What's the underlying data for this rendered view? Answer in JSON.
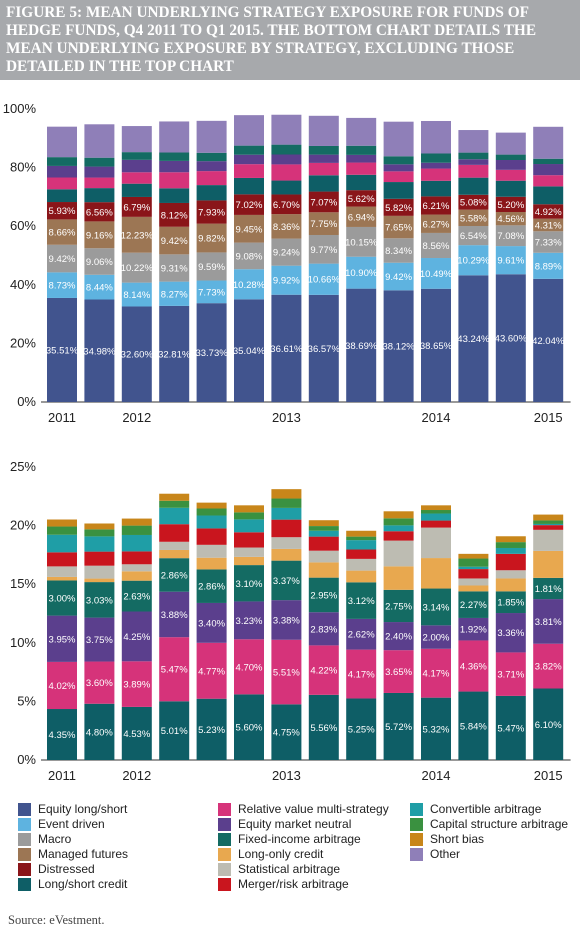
{
  "title": "FIGURE 5: MEAN UNDERLYING STRATEGY EXPOSURE FOR FUNDS OF HEDGE FUNDS, Q4 2011 TO Q1 2015. THE BOTTOM CHART DETAILS THE MEAN UNDERLYING EXPOSURE BY STRATEGY, EXCLUDING THOSE DETAILED IN THE TOP CHART",
  "source": "Source: eVestment.",
  "colors": {
    "Equity long/short": "#41548e",
    "Event driven": "#5eb3e0",
    "Macro": "#9b9b9b",
    "Managed futures": "#9c7654",
    "Distressed": "#8a1519",
    "Long/short credit": "#0e5e66",
    "Relative value multi-strategy": "#d6337a",
    "Equity market neutral": "#5b3f8d",
    "Fixed-income arbitrage": "#146b63",
    "Long-only credit": "#e8a84f",
    "Statistical arbitrage": "#bdbcb2",
    "Merger/risk arbitrage": "#c9151e",
    "Convertible arbitrage": "#1f9ea6",
    "Capital structure arbitrage": "#3a9140",
    "Short bias": "#c8861a",
    "Other": "#8f7fb8"
  },
  "legend": [
    "Equity long/short",
    "Event driven",
    "Macro",
    "Managed futures",
    "Distressed",
    "Long/short credit",
    "Relative value multi-strategy",
    "Equity market neutral",
    "Fixed-income arbitrage",
    "Long-only credit",
    "Statistical arbitrage",
    "Merger/risk arbitrage",
    "Convertible arbitrage",
    "Capital structure arbitrage",
    "Short bias",
    "Other"
  ],
  "chart_data": [
    {
      "type": "bar",
      "stacked": true,
      "categories": [
        "Q4 2011",
        "Q1 2012",
        "Q2 2012",
        "Q3 2012",
        "Q4 2012",
        "Q1 2013",
        "Q2 2013",
        "Q3 2013",
        "Q4 2013",
        "Q1 2014",
        "Q2 2014",
        "Q3 2014",
        "Q4 2014",
        "Q1 2015"
      ],
      "x_tick_labels": [
        "2011",
        "",
        "2012",
        "",
        "",
        "",
        "2013",
        "",
        "",
        "",
        "2014",
        "",
        "",
        "2015"
      ],
      "ylim": [
        0,
        100
      ],
      "y_ticks": [
        "0%",
        "20%",
        "40%",
        "60%",
        "80%",
        "100%"
      ],
      "grid": false,
      "series": [
        {
          "name": "Equity long/short",
          "values": [
            35.51,
            34.98,
            32.6,
            32.81,
            33.73,
            35.04,
            36.61,
            36.57,
            38.69,
            38.12,
            38.65,
            43.24,
            43.6,
            42.04
          ],
          "labels": [
            "35.51%",
            "34.98%",
            "32.60%",
            "32.81%",
            "33.73%",
            "35.04%",
            "36.61%",
            "36.57%",
            "38.69%",
            "38.12%",
            "38.65%",
            "43.24%",
            "43.60%",
            "42.04%"
          ]
        },
        {
          "name": "Event driven",
          "values": [
            8.73,
            8.44,
            8.14,
            8.27,
            7.73,
            10.28,
            9.92,
            10.66,
            10.9,
            9.42,
            10.49,
            10.29,
            9.61,
            8.89
          ],
          "labels": [
            "8.73%",
            "8.44%",
            "8.14%",
            "8.27%",
            "7.73%",
            "10.28%",
            "9.92%",
            "10.66%",
            "10.90%",
            "9.42%",
            "10.49%",
            "10.29%",
            "9.61%",
            "8.89%"
          ]
        },
        {
          "name": "Macro",
          "values": [
            9.42,
            9.06,
            10.22,
            9.31,
            9.59,
            9.08,
            9.24,
            9.77,
            10.15,
            8.34,
            8.56,
            6.54,
            7.08,
            7.33
          ],
          "labels": [
            "9.42%",
            "9.06%",
            "10.22%",
            "9.31%",
            "9.59%",
            "9.08%",
            "9.24%",
            "9.77%",
            "10.15%",
            "8.34%",
            "8.56%",
            "6.54%",
            "7.08%",
            "7.33%"
          ]
        },
        {
          "name": "Managed futures",
          "values": [
            8.66,
            9.16,
            12.23,
            9.42,
            9.82,
            9.45,
            8.36,
            7.75,
            6.94,
            7.65,
            6.27,
            5.58,
            4.56,
            4.31
          ],
          "labels": [
            "8.66%",
            "9.16%",
            "12.23%",
            "9.42%",
            "9.82%",
            "9.45%",
            "8.36%",
            "7.75%",
            "6.94%",
            "7.65%",
            "6.27%",
            "5.58%",
            "4.56%",
            "4.31%"
          ]
        },
        {
          "name": "Distressed",
          "values": [
            5.93,
            6.56,
            6.79,
            8.12,
            7.93,
            7.02,
            6.7,
            7.07,
            5.62,
            5.82,
            6.21,
            5.08,
            5.2,
            4.92
          ],
          "labels": [
            "5.93%",
            "6.56%",
            "6.79%",
            "8.12%",
            "7.93%",
            "7.02%",
            "6.70%",
            "7.07%",
            "5.62%",
            "5.82%",
            "6.21%",
            "5.08%",
            "5.20%",
            "4.92%"
          ]
        },
        {
          "name": "Long/short credit",
          "values": [
            4.35,
            4.8,
            4.53,
            5.01,
            5.23,
            5.6,
            4.75,
            5.56,
            5.25,
            5.72,
            5.32,
            5.84,
            5.47,
            6.1
          ]
        },
        {
          "name": "Relative value multi-strategy",
          "values": [
            4.02,
            3.6,
            3.89,
            5.47,
            4.77,
            4.7,
            5.51,
            4.22,
            4.17,
            3.65,
            4.17,
            4.36,
            3.71,
            3.82
          ]
        },
        {
          "name": "Equity market neutral",
          "values": [
            3.95,
            3.75,
            4.25,
            3.88,
            3.4,
            3.23,
            3.38,
            2.83,
            2.62,
            2.4,
            2.0,
            1.92,
            3.36,
            3.81
          ]
        },
        {
          "name": "Fixed-income arbitrage",
          "values": [
            3.0,
            3.03,
            2.63,
            2.86,
            2.86,
            3.1,
            3.37,
            2.95,
            3.12,
            2.75,
            3.14,
            2.27,
            1.85,
            1.81
          ]
        },
        {
          "name": "Other",
          "values": [
            10.4,
            11.4,
            8.9,
            10.6,
            10.9,
            10.4,
            10.2,
            10.3,
            9.5,
            11.8,
            11.1,
            7.7,
            7.5,
            10.9
          ]
        }
      ]
    },
    {
      "type": "bar",
      "stacked": true,
      "categories": [
        "Q4 2011",
        "Q1 2012",
        "Q2 2012",
        "Q3 2012",
        "Q4 2012",
        "Q1 2013",
        "Q2 2013",
        "Q3 2013",
        "Q4 2013",
        "Q1 2014",
        "Q2 2014",
        "Q3 2014",
        "Q4 2014",
        "Q1 2015"
      ],
      "x_tick_labels": [
        "2011",
        "",
        "2012",
        "",
        "",
        "",
        "2013",
        "",
        "",
        "",
        "2014",
        "",
        "",
        "2015"
      ],
      "ylim": [
        0,
        25
      ],
      "y_ticks": [
        "0%",
        "5%",
        "10%",
        "15%",
        "20%",
        "25%"
      ],
      "grid": false,
      "series": [
        {
          "name": "Long/short credit",
          "values": [
            4.35,
            4.8,
            4.53,
            5.01,
            5.23,
            5.6,
            4.75,
            5.56,
            5.25,
            5.72,
            5.32,
            5.84,
            5.47,
            6.1
          ],
          "labels": [
            "4.35%",
            "4.80%",
            "4.53%",
            "5.01%",
            "5.23%",
            "5.60%",
            "4.75%",
            "5.56%",
            "5.25%",
            "5.72%",
            "5.32%",
            "5.84%",
            "5.47%",
            "6.10%"
          ]
        },
        {
          "name": "Relative value multi-strategy",
          "values": [
            4.02,
            3.6,
            3.89,
            5.47,
            4.77,
            4.7,
            5.51,
            4.22,
            4.17,
            3.65,
            4.17,
            4.36,
            3.71,
            3.82
          ],
          "labels": [
            "4.02%",
            "3.60%",
            "3.89%",
            "5.47%",
            "4.77%",
            "4.70%",
            "5.51%",
            "4.22%",
            "4.17%",
            "3.65%",
            "4.17%",
            "4.36%",
            "3.71%",
            "3.82%"
          ]
        },
        {
          "name": "Equity market neutral",
          "values": [
            3.95,
            3.75,
            4.25,
            3.88,
            3.4,
            3.23,
            3.38,
            2.83,
            2.62,
            2.4,
            2.0,
            1.92,
            3.36,
            3.81
          ],
          "labels": [
            "3.95%",
            "3.75%",
            "4.25%",
            "3.88%",
            "3.40%",
            "3.23%",
            "3.38%",
            "2.83%",
            "2.62%",
            "2.40%",
            "2.00%",
            "1.92%",
            "3.36%",
            "3.81%"
          ]
        },
        {
          "name": "Fixed-income arbitrage",
          "values": [
            3.0,
            3.03,
            2.63,
            2.86,
            2.86,
            3.1,
            3.37,
            2.95,
            3.12,
            2.75,
            3.14,
            2.27,
            1.85,
            1.81
          ],
          "labels": [
            "3.00%",
            "3.03%",
            "2.63%",
            "2.86%",
            "2.86%",
            "3.10%",
            "3.37%",
            "2.95%",
            "3.12%",
            "2.75%",
            "3.14%",
            "2.27%",
            "1.85%",
            "1.81%"
          ]
        },
        {
          "name": "Long-only credit",
          "values": [
            0.3,
            0.3,
            0.8,
            0.7,
            1.0,
            0.7,
            1.0,
            1.3,
            1.0,
            2.0,
            2.6,
            0.5,
            1.1,
            2.3
          ]
        },
        {
          "name": "Statistical arbitrage",
          "values": [
            0.9,
            1.1,
            0.6,
            0.7,
            1.1,
            0.8,
            1.0,
            1.0,
            1.0,
            2.2,
            2.6,
            0.6,
            0.7,
            1.8
          ]
        },
        {
          "name": "Merger/risk arbitrage",
          "values": [
            1.2,
            1.2,
            1.1,
            1.5,
            1.4,
            1.3,
            1.5,
            1.2,
            0.8,
            0.8,
            0.6,
            0.8,
            1.4,
            0.4
          ]
        },
        {
          "name": "Convertible arbitrage",
          "values": [
            1.5,
            1.3,
            1.4,
            1.4,
            1.1,
            1.1,
            1.0,
            0.5,
            0.8,
            0.5,
            0.6,
            0.2,
            0.5,
            0.1
          ]
        },
        {
          "name": "Capital structure arbitrage",
          "values": [
            0.7,
            0.6,
            0.8,
            0.6,
            0.6,
            0.6,
            0.8,
            0.4,
            0.3,
            0.6,
            0.3,
            0.7,
            0.5,
            0.3
          ]
        },
        {
          "name": "Short bias",
          "values": [
            0.6,
            0.5,
            0.6,
            0.6,
            0.5,
            0.6,
            0.8,
            0.5,
            0.5,
            0.6,
            0.4,
            0.4,
            0.5,
            0.5
          ]
        }
      ]
    }
  ]
}
